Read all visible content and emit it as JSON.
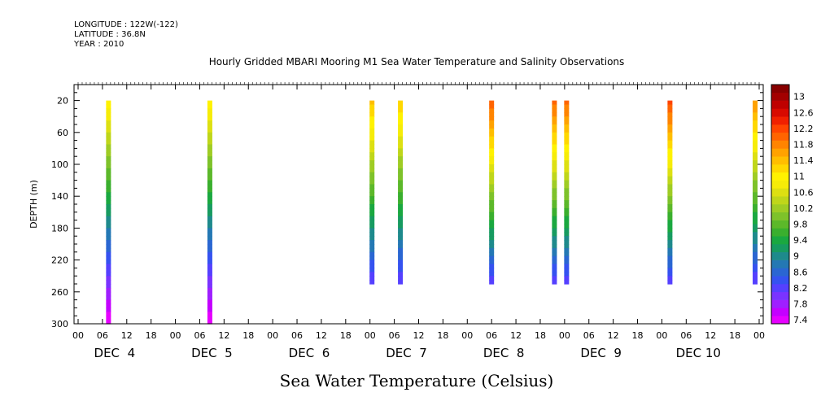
{
  "header": {
    "longitude": "LONGITUDE : 122W(-122)",
    "latitude": "LATITUDE : 36.8N",
    "year": "YEAR : 2010"
  },
  "chart_data": {
    "type": "heatmap",
    "title": "Hourly Gridded MBARI Mooring M1 Sea Water Temperature and Salinity Observations",
    "xlabel": "",
    "ylabel": "DEPTH (m)",
    "colorbar_label": "Sea Water Temperature (Celsius)",
    "x_unit": "hours since DEC 4 00:00",
    "xlim": [
      0,
      168
    ],
    "ylim": [
      300,
      0
    ],
    "y_reversed": true,
    "y_ticks": [
      20,
      60,
      100,
      140,
      180,
      220,
      260,
      300
    ],
    "x_hour_tick_labels": [
      "00",
      "06",
      "12",
      "18",
      "00",
      "06",
      "12",
      "18",
      "00",
      "06",
      "12",
      "18",
      "00",
      "06",
      "12",
      "18",
      "00",
      "06",
      "12",
      "18",
      "00",
      "06",
      "12",
      "18",
      "00",
      "06",
      "12",
      "18",
      "00"
    ],
    "x_day_labels": [
      "DEC  4",
      "DEC  5",
      "DEC  6",
      "DEC  7",
      "DEC  8",
      "DEC  9",
      "DEC 10"
    ],
    "colorbar_levels": [
      7.4,
      7.6,
      7.8,
      8.0,
      8.2,
      8.4,
      8.6,
      8.8,
      9.0,
      9.2,
      9.4,
      9.6,
      9.8,
      10.0,
      10.2,
      10.4,
      10.6,
      10.8,
      11.0,
      11.2,
      11.4,
      11.6,
      11.8,
      12.0,
      12.2,
      12.4,
      12.6,
      12.8,
      13.0,
      13.2
    ],
    "colorbar_tick_labels": [
      "7.4",
      "7.8",
      "8.2",
      "8.6",
      "9",
      "9.4",
      "9.8",
      "10.2",
      "10.6",
      "11",
      "11.4",
      "11.8",
      "12.2",
      "12.6",
      "13"
    ],
    "colors": [
      "#e600ff",
      "#c400ff",
      "#9f1fff",
      "#7a33ff",
      "#5540ff",
      "#3552f0",
      "#2a66d2",
      "#2478b4",
      "#1e8a8c",
      "#179b60",
      "#1aa840",
      "#3aaf2e",
      "#5cb82a",
      "#7ec22a",
      "#9fcc24",
      "#bfd61a",
      "#dde012",
      "#f6ec08",
      "#fff200",
      "#ffd800",
      "#ffbe00",
      "#ffa200",
      "#ff8400",
      "#ff6400",
      "#ff4400",
      "#f02000",
      "#d80a00",
      "#bf0000",
      "#a30000",
      "#880000"
    ],
    "series": [
      {
        "x": 7.5,
        "depth": [
          20,
          300
        ],
        "top_temp": 11.1,
        "bottom_temp": 7.4
      },
      {
        "x": 32.5,
        "depth": [
          20,
          300
        ],
        "top_temp": 11.1,
        "bottom_temp": 7.4
      },
      {
        "x": 72.5,
        "depth": [
          20,
          250
        ],
        "top_temp": 11.5,
        "bottom_temp": 8.2
      },
      {
        "x": 79.5,
        "depth": [
          20,
          250
        ],
        "top_temp": 11.4,
        "bottom_temp": 8.2
      },
      {
        "x": 102.0,
        "depth": [
          20,
          250
        ],
        "top_temp": 12.2,
        "bottom_temp": 8.2
      },
      {
        "x": 117.5,
        "depth": [
          20,
          250
        ],
        "top_temp": 12.1,
        "bottom_temp": 8.2
      },
      {
        "x": 120.5,
        "depth": [
          20,
          250
        ],
        "top_temp": 12.1,
        "bottom_temp": 8.2
      },
      {
        "x": 146.0,
        "depth": [
          20,
          250
        ],
        "top_temp": 12.3,
        "bottom_temp": 8.2
      },
      {
        "x": 167.0,
        "depth": [
          20,
          250
        ],
        "top_temp": 11.8,
        "bottom_temp": 8.2
      }
    ]
  }
}
